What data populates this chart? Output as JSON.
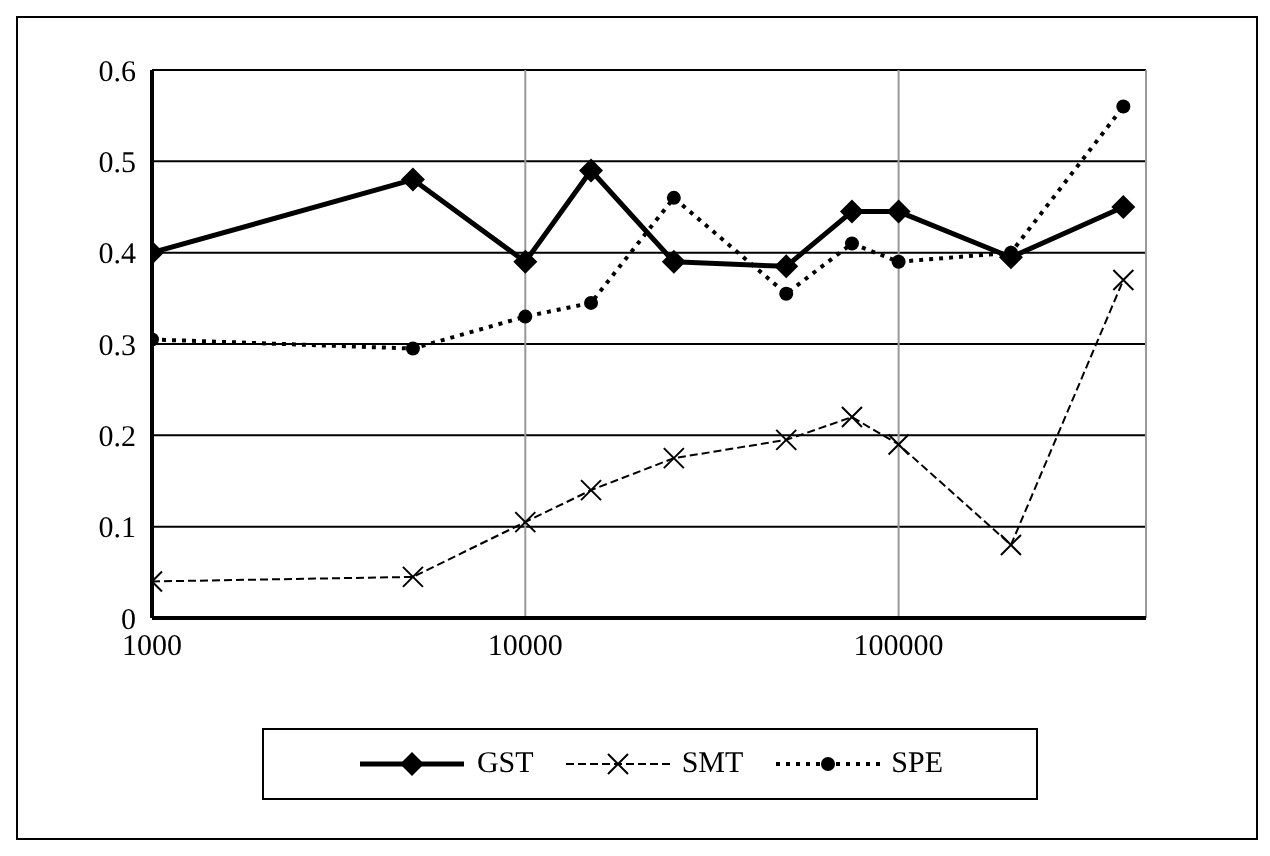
{
  "chart_data": {
    "type": "line",
    "x": [
      1000,
      5000,
      10000,
      15000,
      25000,
      50000,
      75000,
      100000,
      200000,
      400000
    ],
    "series": [
      {
        "name": "GST",
        "color": "#000000",
        "marker": "diamond",
        "line_style": "solid",
        "values": [
          0.4,
          0.48,
          0.39,
          0.49,
          0.39,
          0.385,
          0.445,
          0.445,
          0.395,
          0.45
        ]
      },
      {
        "name": "SMT",
        "color": "#000000",
        "marker": "cross",
        "line_style": "dashed",
        "values": [
          0.04,
          0.045,
          0.105,
          0.14,
          0.175,
          0.195,
          0.22,
          0.19,
          0.08,
          0.37
        ]
      },
      {
        "name": "SPE",
        "color": "#000000",
        "marker": "circle",
        "line_style": "dotted",
        "values": [
          0.305,
          0.295,
          0.33,
          0.345,
          0.46,
          0.355,
          0.41,
          0.39,
          0.4,
          0.56
        ]
      }
    ],
    "log": "x",
    "xlim": [
      1000,
      460000
    ],
    "xticks": [
      1000,
      10000,
      100000
    ],
    "ylim": [
      0,
      0.6
    ],
    "yticks": [
      0,
      0.1,
      0.2,
      0.3,
      0.4,
      0.5,
      0.6
    ],
    "grid": true,
    "legend": "bottom"
  }
}
